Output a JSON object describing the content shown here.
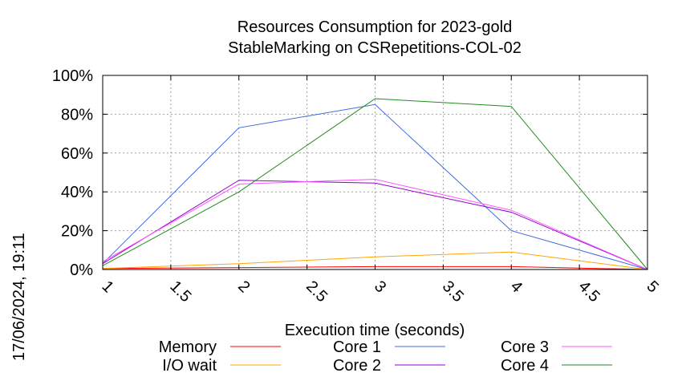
{
  "chart_data": {
    "type": "line",
    "title": "Resources Consumption for 2023-gold",
    "subtitle": "StableMarking on CSRepetitions-COL-02",
    "xlabel": "Execution time (seconds)",
    "ylabel": "",
    "timestamp": "17/06/2024, 19:11",
    "xlim": [
      1,
      5
    ],
    "ylim": [
      0,
      100
    ],
    "x_ticks": [
      "1",
      "1.5",
      "2",
      "2.5",
      "3",
      "3.5",
      "4",
      "4.5",
      "5"
    ],
    "x_tick_values": [
      1,
      1.5,
      2,
      2.5,
      3,
      3.5,
      4,
      4.5,
      5
    ],
    "y_ticks": [
      "0%",
      "20%",
      "40%",
      "60%",
      "80%",
      "100%"
    ],
    "y_tick_values": [
      0,
      20,
      40,
      60,
      80,
      100
    ],
    "grid": true,
    "legend_position": "bottom",
    "series": [
      {
        "name": "Memory",
        "color": "#ff0000",
        "x": [
          1,
          2,
          3,
          4,
          5
        ],
        "values": [
          0.5,
          1,
          1.5,
          1.5,
          0
        ]
      },
      {
        "name": "I/O wait",
        "color": "#ffa500",
        "x": [
          1,
          2,
          3,
          4,
          5
        ],
        "values": [
          0.5,
          3,
          6.5,
          9,
          0
        ]
      },
      {
        "name": "Core 1",
        "color": "#4169e1",
        "x": [
          1,
          2,
          3,
          4,
          5
        ],
        "values": [
          3,
          73,
          85,
          20,
          0
        ]
      },
      {
        "name": "Core 2",
        "color": "#9400d3",
        "x": [
          1,
          2,
          3,
          4,
          5
        ],
        "values": [
          3,
          46,
          44.5,
          29.5,
          0
        ]
      },
      {
        "name": "Core 3",
        "color": "#ff55ff",
        "x": [
          1,
          2,
          3,
          4,
          5
        ],
        "values": [
          4,
          44,
          46.5,
          30.5,
          0
        ]
      },
      {
        "name": "Core 4",
        "color": "#228b22",
        "x": [
          1,
          2,
          3,
          4,
          5
        ],
        "values": [
          2,
          40,
          88,
          84,
          0
        ]
      }
    ]
  }
}
